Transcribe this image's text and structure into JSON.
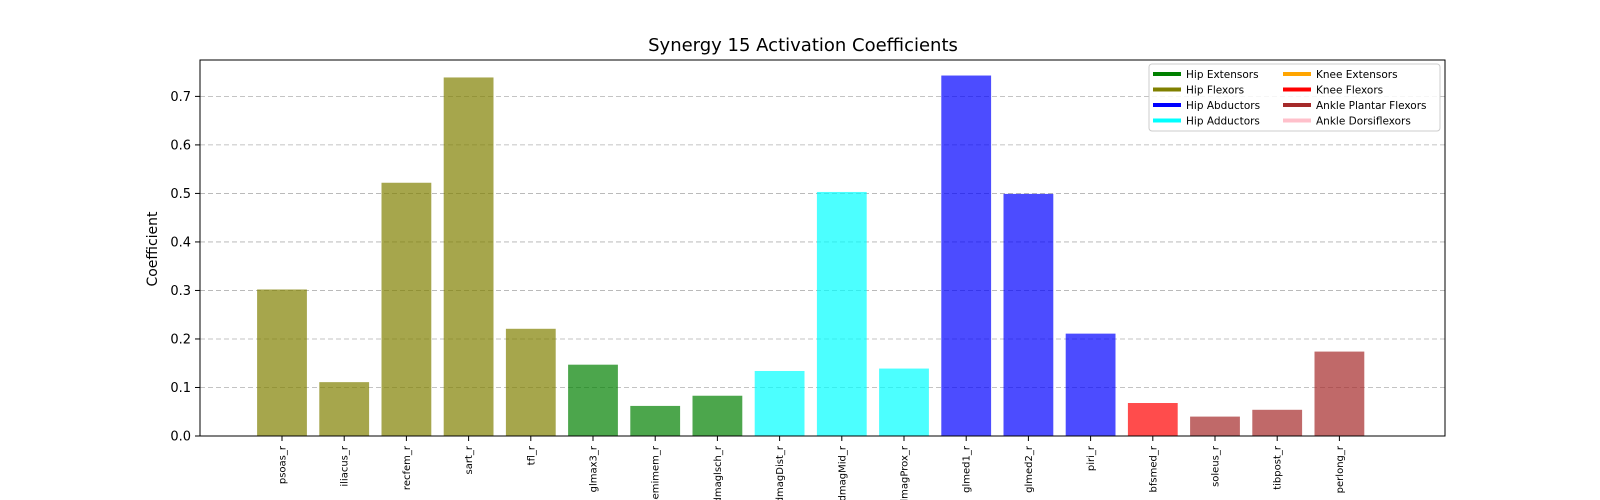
{
  "chart_data": {
    "type": "bar",
    "title": "Synergy 15 Activation Coefficients",
    "xlabel": "",
    "ylabel": "Coefficient",
    "ylim": [
      0,
      0.775
    ],
    "yticks": [
      "0.0",
      "0.1",
      "0.2",
      "0.3",
      "0.4",
      "0.5",
      "0.6",
      "0.7"
    ],
    "grid": "y-dashed",
    "legend_position": "top-right",
    "bar_alpha": 0.7,
    "categories": [
      "psoas_r",
      "iliacus_r",
      "recfem_r",
      "sart_r",
      "tfl_r",
      "glmax3_r",
      "semimem_r",
      "addmaglsch_r",
      "addmagDist_r",
      "addmagMid_r",
      "addmagProx_r",
      "glmed1_r",
      "glmed2_r",
      "piri_r",
      "bfsmed_r",
      "soleus_r",
      "tibpost_r",
      "perlong_r"
    ],
    "tick_labels": [
      "psoas_r",
      "iliacus_r",
      "recfem_r",
      "sart_r",
      "tfl_r",
      "glmax3_r",
      "semimem_r",
      "addmaglsch_r",
      "addmagDist_r",
      "addmagMid_r",
      "addmagProx_r",
      "glmed1_r",
      "glmed2_r",
      "piri_r",
      "bfsmed_r",
      "soleus_r",
      "tibpost_r",
      "perlong_r"
    ],
    "values": [
      0.302,
      0.111,
      0.522,
      0.739,
      0.221,
      0.147,
      0.062,
      0.083,
      0.134,
      0.503,
      0.139,
      0.743,
      0.499,
      0.211,
      0.068,
      0.04,
      0.054,
      0.174
    ],
    "groups": [
      "Hip Flexors",
      "Hip Flexors",
      "Hip Flexors",
      "Hip Flexors",
      "Hip Flexors",
      "Hip Extensors",
      "Hip Extensors",
      "Hip Extensors",
      "Hip Adductors",
      "Hip Adductors",
      "Hip Adductors",
      "Hip Abductors",
      "Hip Abductors",
      "Hip Abductors",
      "Knee Flexors",
      "Ankle Plantar Flexors",
      "Ankle Plantar Flexors",
      "Ankle Plantar Flexors"
    ],
    "legend": [
      {
        "name": "Hip Extensors",
        "color": "#008000"
      },
      {
        "name": "Hip Flexors",
        "color": "#808000"
      },
      {
        "name": "Hip Abductors",
        "color": "#0000ff"
      },
      {
        "name": "Hip Adductors",
        "color": "#00ffff"
      },
      {
        "name": "Knee Extensors",
        "color": "#ffa500"
      },
      {
        "name": "Knee Flexors",
        "color": "#ff0000"
      },
      {
        "name": "Ankle Plantar Flexors",
        "color": "#a52a2a"
      },
      {
        "name": "Ankle Dorsiflexors",
        "color": "#ffc0cb"
      }
    ]
  }
}
